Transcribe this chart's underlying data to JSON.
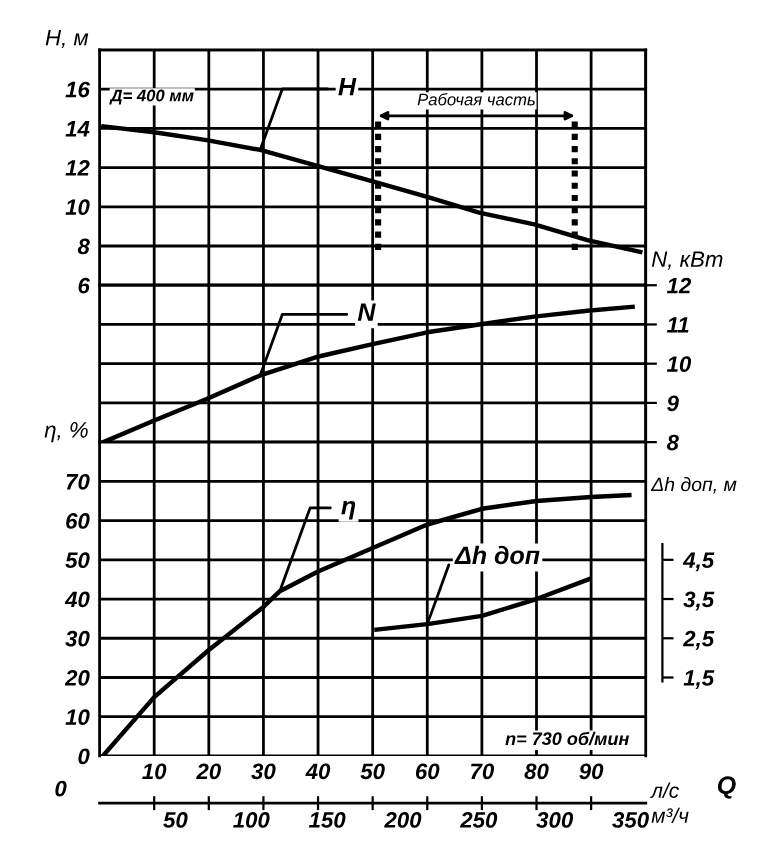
{
  "chart_data": [
    {
      "type": "line",
      "ylabel": "H, м",
      "xlim": [
        0,
        100
      ],
      "xticks": [
        0,
        10,
        20,
        30,
        40,
        50,
        60,
        70,
        80,
        90,
        100
      ],
      "ylim": [
        6,
        18
      ],
      "yticks": [
        6,
        8,
        10,
        12,
        14,
        16,
        {
          "value": 18,
          "label": null
        }
      ],
      "tick_labels": "y",
      "grid": true,
      "legend": false,
      "series": [
        {
          "name": "H",
          "color": "#000000",
          "x": [
            0.7,
            10,
            19.6,
            29.4,
            39.7,
            50,
            60,
            69.5,
            79.6,
            89.3,
            99
          ],
          "values": [
            14.1,
            13.8,
            13.4,
            12.9,
            12.1,
            11.3,
            10.5,
            9.7,
            9.1,
            8.3,
            7.7
          ]
        }
      ],
      "annotations": [
        "Д= 400 мм",
        "Рабочая часть"
      ],
      "ref_lines": [
        {
          "axis": "x",
          "value": 51
        },
        {
          "axis": "x",
          "value": 87
        }
      ]
    },
    {
      "type": "line",
      "ylabel": "N, кВт",
      "xlim": [
        0,
        100
      ],
      "xticks": [
        0,
        10,
        20,
        30,
        40,
        50,
        60,
        70,
        80,
        90,
        100
      ],
      "ylim": [
        8,
        12
      ],
      "yticks": [
        8,
        9,
        10,
        11,
        12
      ],
      "tick_labels": "y",
      "grid": true,
      "legend": false,
      "series": [
        {
          "name": "N",
          "color": "#000000",
          "x": [
            0.7,
            10,
            19.6,
            29.4,
            39.7,
            50,
            60,
            69.5,
            79.6,
            89.3,
            97.6
          ],
          "values": [
            8.0,
            8.55,
            9.1,
            9.7,
            10.17,
            10.5,
            10.8,
            11.0,
            11.2,
            11.35,
            11.45
          ]
        }
      ]
    },
    {
      "type": "line",
      "ylabel": "η, %",
      "y2label": "Δh доп, м",
      "xlabel": "л/с",
      "x2label": "м³/ч",
      "xlim": [
        0,
        100
      ],
      "xticks": [
        10,
        20,
        30,
        40,
        50,
        60,
        70,
        80,
        90
      ],
      "x2lim": [
        0,
        360
      ],
      "x2ticks": [
        50,
        100,
        150,
        200,
        250,
        300,
        350
      ],
      "ylim": [
        0,
        80
      ],
      "yticks": [
        0,
        10,
        20,
        30,
        40,
        50,
        60,
        70
      ],
      "y2lim": [
        -0.5,
        7.5
      ],
      "y2ticks": [
        {
          "value": 1.5,
          "label": "1,5"
        },
        {
          "value": 2.5,
          "label": "2,5"
        },
        {
          "value": 3.5,
          "label": "3,5"
        },
        {
          "value": 4.5,
          "label": "4,5"
        }
      ],
      "grid": true,
      "legend": false,
      "series": [
        {
          "name": "η",
          "color": "#000000",
          "x": [
            0.6,
            10,
            20,
            30,
            33,
            40,
            50,
            60,
            70,
            80,
            90,
            97
          ],
          "values": [
            0,
            15,
            27,
            38,
            42,
            47,
            53,
            59,
            63,
            65,
            66,
            66.5
          ]
        },
        {
          "name": "Δh доп",
          "color": "#000000",
          "axis": "y2",
          "x": [
            50.7,
            60,
            70,
            80,
            89.5
          ],
          "values": [
            2.72,
            2.86,
            3.07,
            3.5,
            4.0
          ]
        }
      ],
      "annotations": [
        "n= 730 об/мин",
        "Q",
        "0"
      ]
    }
  ]
}
